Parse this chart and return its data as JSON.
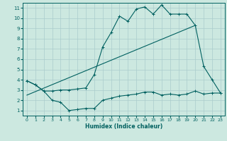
{
  "title": "",
  "xlabel": "Humidex (Indice chaleur)",
  "bg_color": "#cce8e0",
  "line_color": "#006060",
  "grid_color": "#aacccc",
  "xlim": [
    -0.5,
    23.5
  ],
  "ylim": [
    0.5,
    11.5
  ],
  "xticks": [
    0,
    1,
    2,
    3,
    4,
    5,
    6,
    7,
    8,
    9,
    10,
    11,
    12,
    13,
    14,
    15,
    16,
    17,
    18,
    19,
    20,
    21,
    22,
    23
  ],
  "yticks": [
    1,
    2,
    3,
    4,
    5,
    6,
    7,
    8,
    9,
    10,
    11
  ],
  "line1_x": [
    0,
    1,
    2,
    3,
    4,
    5,
    6,
    7,
    8,
    9,
    10,
    11,
    12,
    13,
    14,
    15,
    16,
    17,
    18,
    19,
    20,
    21,
    22,
    23
  ],
  "line1_y": [
    3.9,
    3.5,
    2.9,
    2.9,
    3.0,
    3.0,
    3.1,
    3.2,
    4.5,
    7.2,
    8.6,
    10.2,
    9.7,
    10.9,
    11.1,
    10.4,
    11.3,
    10.4,
    10.4,
    10.4,
    9.3,
    5.3,
    4.0,
    2.7
  ],
  "line2_x": [
    0,
    1,
    2,
    3,
    4,
    5,
    6,
    7,
    8,
    9,
    10,
    11,
    12,
    13,
    14,
    15,
    16,
    17,
    18,
    19,
    20,
    21,
    22,
    23
  ],
  "line2_y": [
    3.9,
    3.5,
    2.9,
    2.0,
    1.8,
    1.0,
    1.1,
    1.2,
    1.2,
    2.0,
    2.2,
    2.4,
    2.5,
    2.6,
    2.8,
    2.8,
    2.5,
    2.6,
    2.5,
    2.6,
    2.9,
    2.6,
    2.7,
    2.7
  ],
  "line3_x": [
    0,
    20
  ],
  "line3_y": [
    2.5,
    9.3
  ]
}
